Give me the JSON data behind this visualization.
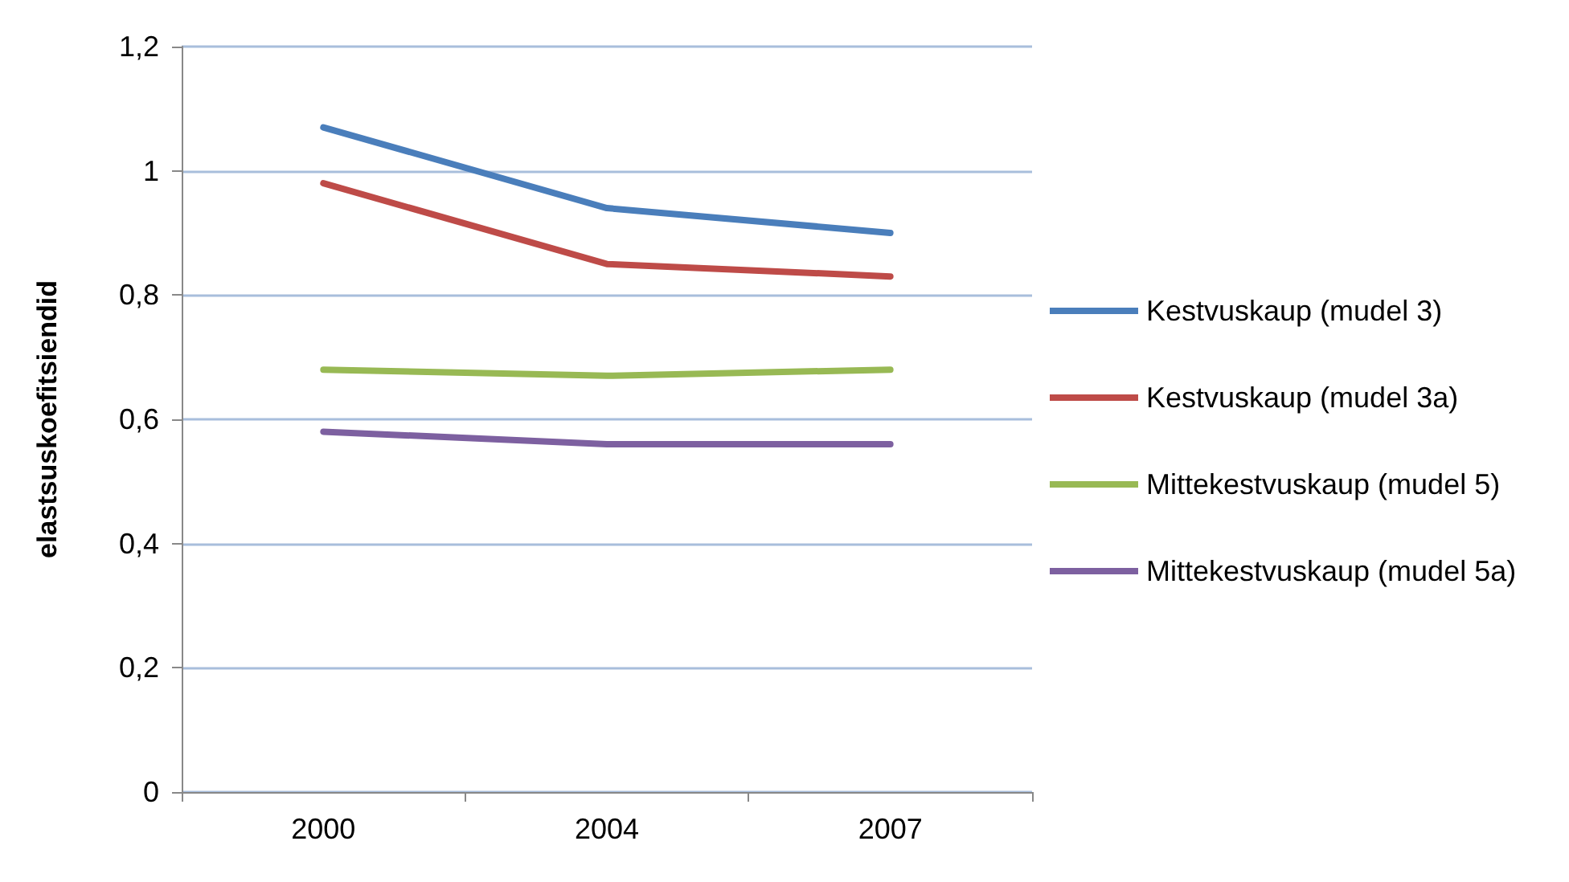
{
  "chart_data": {
    "type": "line",
    "ylabel": "elastsuskoefitsiendid",
    "categories": [
      "2000",
      "2004",
      "2007"
    ],
    "series": [
      {
        "name": "Kestvuskaup (mudel 3)",
        "color": "#4a7ebb",
        "values": [
          1.07,
          0.94,
          0.9
        ]
      },
      {
        "name": "Kestvuskaup (mudel 3a)",
        "color": "#be4b48",
        "values": [
          0.98,
          0.85,
          0.83
        ]
      },
      {
        "name": "Mittekestvuskaup (mudel 5)",
        "color": "#98b954",
        "values": [
          0.68,
          0.67,
          0.68
        ]
      },
      {
        "name": "Mittekestvuskaup (mudel 5a)",
        "color": "#7d60a0",
        "values": [
          0.58,
          0.56,
          0.56
        ]
      }
    ],
    "ylim": [
      0,
      1.2
    ],
    "yticks": [
      {
        "value": 0,
        "label": "0"
      },
      {
        "value": 0.2,
        "label": "0,2"
      },
      {
        "value": 0.4,
        "label": "0,4"
      },
      {
        "value": 0.6,
        "label": "0,6"
      },
      {
        "value": 0.8,
        "label": "0,8"
      },
      {
        "value": 1,
        "label": "1"
      },
      {
        "value": 1.2,
        "label": "1,2"
      }
    ],
    "grid": "y",
    "legend": "right",
    "marker": "none",
    "line_style": "solid"
  }
}
